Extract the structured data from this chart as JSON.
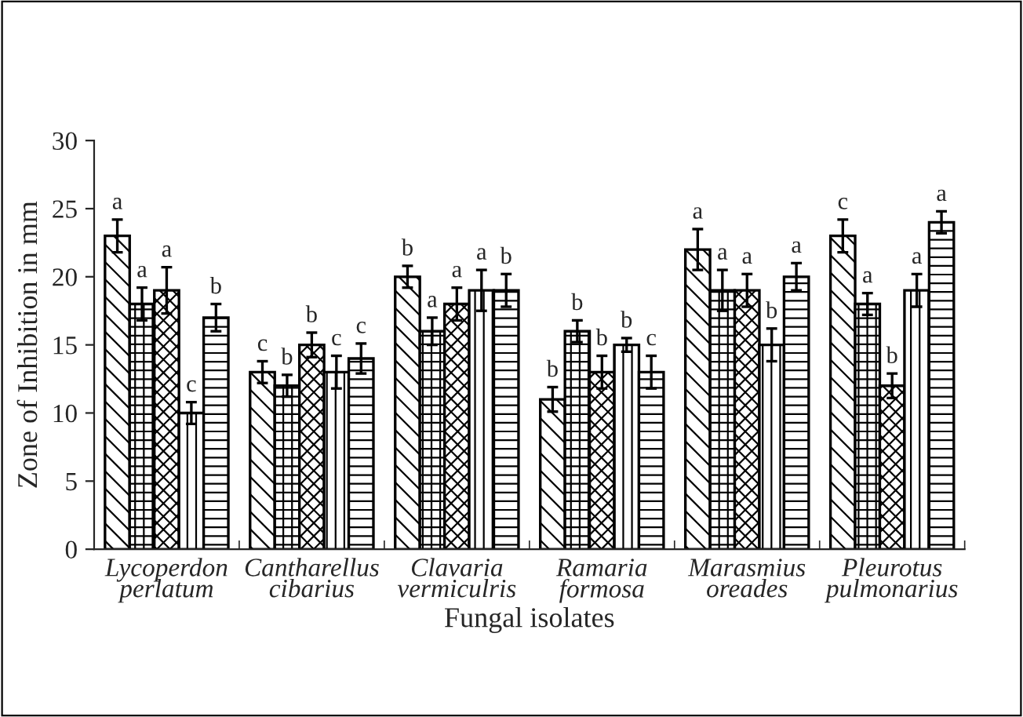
{
  "chart_data": {
    "type": "bar",
    "xlabel": "Fungal isolates",
    "ylabel": "Zone of Inhibition in mm",
    "categories": [
      "Lycoperdon\nperlatum",
      "Cantharellus\ncibarius",
      "Clavaria\nvermiculris",
      "Ramaria\nformosa",
      "Marasmius\noreades",
      "Pleurotus\npulmonarius"
    ],
    "series": [
      {
        "color": "#000000",
        "values": [
          23,
          13,
          20,
          11,
          22,
          23
        ],
        "errors": [
          1.2,
          0.8,
          0.8,
          0.9,
          1.5,
          1.2
        ],
        "value_labels": [
          "a",
          "c",
          "b",
          "b",
          "a",
          "c"
        ]
      },
      {
        "color": "#000000",
        "values": [
          18,
          12,
          16,
          16,
          19,
          18
        ],
        "errors": [
          1.2,
          0.8,
          1.0,
          0.8,
          1.5,
          0.8
        ],
        "value_labels": [
          "a",
          "b",
          "a",
          "b",
          "a",
          "a"
        ]
      },
      {
        "color": "#000000",
        "values": [
          19,
          15,
          18,
          13,
          19,
          12
        ],
        "errors": [
          1.7,
          0.9,
          1.2,
          1.2,
          1.2,
          0.9
        ],
        "value_labels": [
          "a",
          "b",
          "a",
          "b",
          "a",
          "b"
        ]
      },
      {
        "color": "#000000",
        "values": [
          10,
          13,
          19,
          15,
          15,
          19
        ],
        "errors": [
          0.8,
          1.2,
          1.5,
          0.5,
          1.2,
          1.2
        ],
        "value_labels": [
          "c",
          "c",
          "a",
          "b",
          "b",
          "a"
        ]
      },
      {
        "color": "#000000",
        "values": [
          17,
          14,
          19,
          13,
          20,
          24
        ],
        "errors": [
          1.0,
          1.1,
          1.2,
          1.2,
          1.0,
          0.8
        ],
        "value_labels": [
          "b",
          "c",
          "b",
          "c",
          "a",
          "a"
        ]
      }
    ],
    "ylim": [
      0,
      30
    ],
    "yticks": [
      0,
      5,
      10,
      15,
      20,
      25,
      30
    ],
    "grid": false,
    "legend": false
  }
}
